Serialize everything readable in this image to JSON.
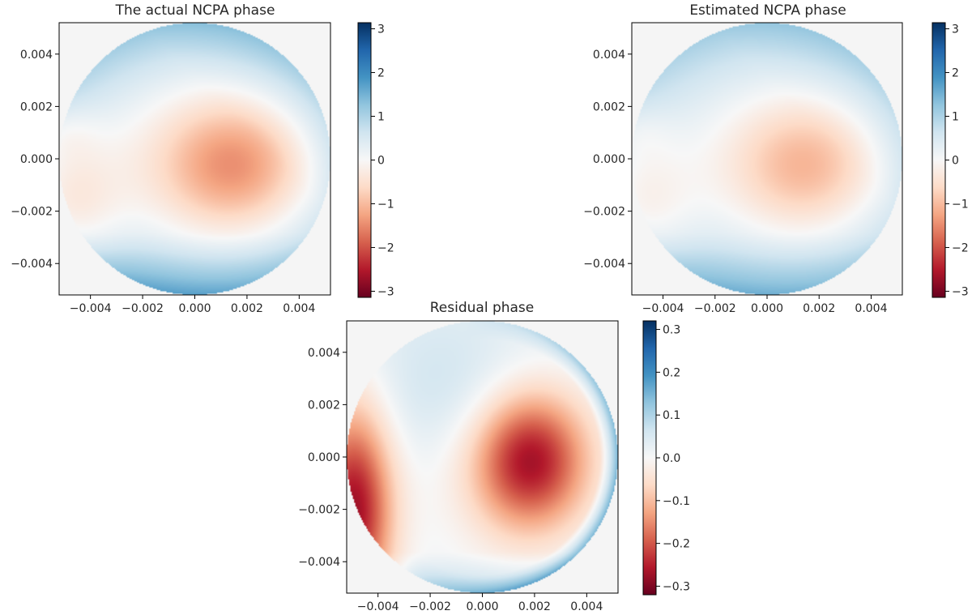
{
  "chart_data": [
    {
      "type": "heatmap",
      "title": "The actual NCPA phase",
      "colormap": "RdBu",
      "aperture": "circular",
      "xlim": [
        -0.0052,
        0.0052
      ],
      "ylim": [
        -0.0052,
        0.0052
      ],
      "xticks": [
        "−0.004",
        "−0.002",
        "0.000",
        "0.002",
        "0.004"
      ],
      "xtick_values": [
        -0.004,
        -0.002,
        0.0,
        0.002,
        0.004
      ],
      "yticks": [
        "0.004",
        "0.002",
        "0.000",
        "−0.002",
        "−0.004"
      ],
      "ytick_values": [
        0.004,
        0.002,
        0.0,
        -0.002,
        -0.004
      ],
      "colorbar": {
        "range": [
          -3.14,
          3.14
        ],
        "ticks": [
          "3",
          "2",
          "1",
          "0",
          "−1",
          "−2",
          "−3"
        ],
        "tick_values": [
          3,
          2,
          1,
          0,
          -1,
          -2,
          -3
        ]
      }
    },
    {
      "type": "heatmap",
      "title": "Estimated NCPA phase",
      "colormap": "RdBu",
      "aperture": "circular",
      "xlim": [
        -0.0052,
        0.0052
      ],
      "ylim": [
        -0.0052,
        0.0052
      ],
      "xticks": [
        "−0.004",
        "−0.002",
        "0.000",
        "0.002",
        "0.004"
      ],
      "xtick_values": [
        -0.004,
        -0.002,
        0.0,
        0.002,
        0.004
      ],
      "yticks": [
        "0.004",
        "0.002",
        "0.000",
        "−0.002",
        "−0.004"
      ],
      "ytick_values": [
        0.004,
        0.002,
        0.0,
        -0.002,
        -0.004
      ],
      "colorbar": {
        "range": [
          -3.14,
          3.14
        ],
        "ticks": [
          "3",
          "2",
          "1",
          "0",
          "−1",
          "−2",
          "−3"
        ],
        "tick_values": [
          3,
          2,
          1,
          0,
          -1,
          -2,
          -3
        ]
      }
    },
    {
      "type": "heatmap",
      "title": "Residual phase",
      "colormap": "RdBu",
      "aperture": "circular",
      "xlim": [
        -0.0052,
        0.0052
      ],
      "ylim": [
        -0.0052,
        0.0052
      ],
      "xticks": [
        "−0.004",
        "−0.002",
        "0.000",
        "0.002",
        "0.004"
      ],
      "xtick_values": [
        -0.004,
        -0.002,
        0.0,
        0.002,
        0.004
      ],
      "yticks": [
        "0.004",
        "0.002",
        "0.000",
        "−0.002",
        "−0.004"
      ],
      "ytick_values": [
        0.004,
        0.002,
        0.0,
        -0.002,
        -0.004
      ],
      "colorbar": {
        "range": [
          -0.32,
          0.32
        ],
        "ticks": [
          "0.3",
          "0.2",
          "0.1",
          "0.0",
          "−0.1",
          "−0.2",
          "−0.3"
        ],
        "tick_values": [
          0.3,
          0.2,
          0.1,
          0.0,
          -0.1,
          -0.2,
          -0.3
        ]
      }
    }
  ]
}
